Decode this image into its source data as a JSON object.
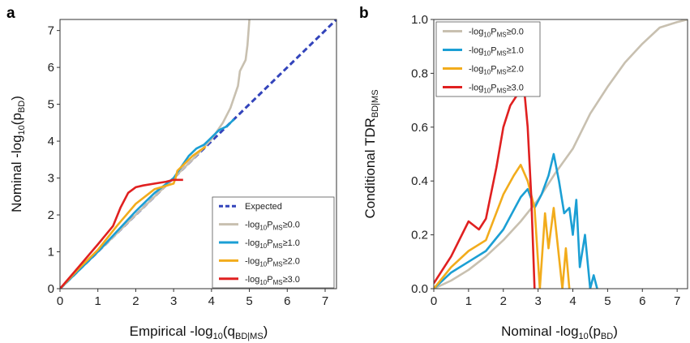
{
  "chart_data": [
    {
      "panel": "a",
      "type": "line",
      "xlabel": "Empirical -log",
      "xlabel_sub": "10",
      "xlabel_paren": "(q",
      "xlabel_sub2": "BD|MS",
      "xlabel_end": ")",
      "ylabel": "Nominal -log",
      "ylabel_sub": "10",
      "ylabel_paren": "(p",
      "ylabel_sub2": "BD",
      "ylabel_end": ")",
      "xlim": [
        0,
        7.3
      ],
      "ylim": [
        0,
        7.3
      ],
      "xticks": [
        "0",
        "1",
        "2",
        "3",
        "4",
        "5",
        "6",
        "7"
      ],
      "yticks": [
        "0",
        "1",
        "2",
        "3",
        "4",
        "5",
        "6",
        "7"
      ],
      "legend_position": "bottom-right",
      "series": [
        {
          "name": "Expected",
          "color": "#3344bb",
          "dash": true,
          "points": [
            [
              0,
              0
            ],
            [
              7.3,
              7.3
            ]
          ]
        },
        {
          "name_pre": "-log",
          "name_sub": "10",
          "name_mid": "P",
          "name_sub2": "MS",
          "name_post": "≥0.0",
          "color": "#c8c0b0",
          "points": [
            [
              0,
              0
            ],
            [
              0.5,
              0.5
            ],
            [
              1,
              1
            ],
            [
              1.5,
              1.5
            ],
            [
              2,
              2
            ],
            [
              2.5,
              2.5
            ],
            [
              3,
              3
            ],
            [
              3.5,
              3.5
            ],
            [
              4,
              4.05
            ],
            [
              4.3,
              4.5
            ],
            [
              4.5,
              4.9
            ],
            [
              4.7,
              5.5
            ],
            [
              4.75,
              5.9
            ],
            [
              4.9,
              6.2
            ],
            [
              4.95,
              6.6
            ],
            [
              5.0,
              7.3
            ]
          ]
        },
        {
          "name_pre": "-log",
          "name_sub": "10",
          "name_mid": "P",
          "name_sub2": "MS",
          "name_post": "≥1.0",
          "color": "#1b9fd4",
          "points": [
            [
              0,
              0
            ],
            [
              0.5,
              0.5
            ],
            [
              1,
              1
            ],
            [
              1.5,
              1.55
            ],
            [
              2,
              2.1
            ],
            [
              2.5,
              2.6
            ],
            [
              3,
              3.0
            ],
            [
              3.2,
              3.3
            ],
            [
              3.4,
              3.6
            ],
            [
              3.6,
              3.8
            ],
            [
              3.8,
              3.9
            ],
            [
              4,
              4.1
            ],
            [
              4.2,
              4.3
            ],
            [
              4.4,
              4.4
            ],
            [
              4.6,
              4.6
            ]
          ]
        },
        {
          "name_pre": "-log",
          "name_sub": "10",
          "name_mid": "P",
          "name_sub2": "MS",
          "name_post": "≥2.0",
          "color": "#f2ac1c",
          "points": [
            [
              0,
              0
            ],
            [
              0.5,
              0.55
            ],
            [
              1,
              1.05
            ],
            [
              1.5,
              1.7
            ],
            [
              2,
              2.3
            ],
            [
              2.5,
              2.7
            ],
            [
              3,
              2.85
            ],
            [
              3.05,
              3.0
            ],
            [
              3.1,
              3.2
            ],
            [
              3.3,
              3.4
            ],
            [
              3.5,
              3.6
            ],
            [
              3.7,
              3.75
            ],
            [
              3.85,
              3.85
            ]
          ]
        },
        {
          "name_pre": "-log",
          "name_sub": "10",
          "name_mid": "P",
          "name_sub2": "MS",
          "name_post": "≥3.0",
          "color": "#e02020",
          "points": [
            [
              0,
              0
            ],
            [
              0.5,
              0.6
            ],
            [
              1,
              1.2
            ],
            [
              1.4,
              1.7
            ],
            [
              1.6,
              2.2
            ],
            [
              1.8,
              2.6
            ],
            [
              2,
              2.75
            ],
            [
              2.2,
              2.8
            ],
            [
              2.5,
              2.85
            ],
            [
              2.8,
              2.9
            ],
            [
              3.0,
              2.95
            ],
            [
              3.25,
              2.95
            ]
          ]
        }
      ]
    },
    {
      "panel": "b",
      "type": "line",
      "xlabel": "Nominal -log",
      "xlabel_sub": "10",
      "xlabel_paren": "(p",
      "xlabel_sub2": "BD",
      "xlabel_end": ")",
      "ylabel": "Conditional TDR",
      "ylabel_sub": "BD|MS",
      "xlim": [
        0,
        7.3
      ],
      "ylim": [
        0,
        1.0
      ],
      "xticks": [
        "0",
        "1",
        "2",
        "3",
        "4",
        "5",
        "6",
        "7"
      ],
      "yticks": [
        "0.0",
        "0.2",
        "0.4",
        "0.6",
        "0.8",
        "1.0"
      ],
      "legend_position": "top-left",
      "series": [
        {
          "name_pre": "-log",
          "name_sub": "10",
          "name_mid": "P",
          "name_sub2": "MS",
          "name_post": "≥0.0",
          "color": "#c8c0b0",
          "points": [
            [
              0,
              0
            ],
            [
              0.5,
              0.03
            ],
            [
              1,
              0.07
            ],
            [
              1.5,
              0.12
            ],
            [
              2,
              0.18
            ],
            [
              2.5,
              0.25
            ],
            [
              3,
              0.33
            ],
            [
              3.5,
              0.43
            ],
            [
              4,
              0.52
            ],
            [
              4.5,
              0.65
            ],
            [
              5,
              0.75
            ],
            [
              5.5,
              0.84
            ],
            [
              6,
              0.91
            ],
            [
              6.5,
              0.97
            ],
            [
              7,
              0.99
            ],
            [
              7.3,
              1.0
            ]
          ]
        },
        {
          "name_pre": "-log",
          "name_sub": "10",
          "name_mid": "P",
          "name_sub2": "MS",
          "name_post": "≥1.0",
          "color": "#1b9fd4",
          "points": [
            [
              0,
              0
            ],
            [
              0.5,
              0.06
            ],
            [
              1,
              0.1
            ],
            [
              1.5,
              0.14
            ],
            [
              2,
              0.22
            ],
            [
              2.5,
              0.34
            ],
            [
              2.7,
              0.37
            ],
            [
              2.9,
              0.3
            ],
            [
              3.1,
              0.35
            ],
            [
              3.3,
              0.42
            ],
            [
              3.45,
              0.5
            ],
            [
              3.6,
              0.4
            ],
            [
              3.75,
              0.28
            ],
            [
              3.9,
              0.3
            ],
            [
              4.0,
              0.2
            ],
            [
              4.1,
              0.33
            ],
            [
              4.2,
              0.08
            ],
            [
              4.35,
              0.2
            ],
            [
              4.5,
              0.0
            ],
            [
              4.6,
              0.05
            ],
            [
              4.7,
              0.0
            ]
          ]
        },
        {
          "name_pre": "-log",
          "name_sub": "10",
          "name_mid": "P",
          "name_sub2": "MS",
          "name_post": "≥2.0",
          "color": "#f2ac1c",
          "points": [
            [
              0,
              0
            ],
            [
              0.5,
              0.08
            ],
            [
              1,
              0.14
            ],
            [
              1.5,
              0.18
            ],
            [
              2,
              0.35
            ],
            [
              2.3,
              0.42
            ],
            [
              2.5,
              0.46
            ],
            [
              2.7,
              0.4
            ],
            [
              2.9,
              0.3
            ],
            [
              3.0,
              0.1
            ],
            [
              3.05,
              0.0
            ],
            [
              3.2,
              0.28
            ],
            [
              3.3,
              0.15
            ],
            [
              3.45,
              0.3
            ],
            [
              3.55,
              0.18
            ],
            [
              3.7,
              0.0
            ],
            [
              3.8,
              0.15
            ],
            [
              3.9,
              0.0
            ]
          ]
        },
        {
          "name_pre": "-log",
          "name_sub": "10",
          "name_mid": "P",
          "name_sub2": "MS",
          "name_post": "≥3.0",
          "color": "#e02020",
          "points": [
            [
              0,
              0.02
            ],
            [
              0.5,
              0.12
            ],
            [
              1,
              0.25
            ],
            [
              1.3,
              0.22
            ],
            [
              1.5,
              0.26
            ],
            [
              1.8,
              0.45
            ],
            [
              2,
              0.6
            ],
            [
              2.2,
              0.68
            ],
            [
              2.4,
              0.72
            ],
            [
              2.6,
              0.74
            ],
            [
              2.7,
              0.6
            ],
            [
              2.8,
              0.35
            ],
            [
              2.9,
              0.0
            ]
          ]
        }
      ]
    }
  ]
}
